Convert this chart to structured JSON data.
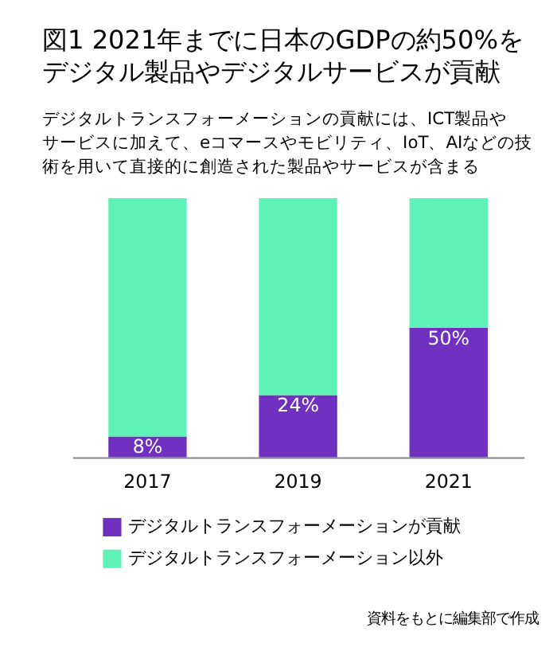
{
  "chart_data": {
    "type": "bar",
    "title": [
      "図1 2021年までに日本のGDPの約50%を",
      "デジタル製品やデジタルサービスが貢献"
    ],
    "subtitle": [
      "デジタルトランスフォーメーションの貢献には、ICT製品や",
      "サービスに加えて、eコマースやモビリティ、IoT、AIなどの技",
      "術を用いて直接的に創造された製品やサービスが含まる"
    ],
    "categories": [
      "2017",
      "2019",
      "2021"
    ],
    "stacked": true,
    "series": [
      {
        "name": "デジタルトランスフォーメーションが貢献",
        "color": "#7030c0",
        "values": [
          8,
          24,
          50
        ],
        "value_labels": [
          "8%",
          "24%",
          "50%"
        ]
      },
      {
        "name": "デジタルトランスフォーメーション以外",
        "color": "#5ef2b8",
        "values": [
          92,
          76,
          50
        ]
      }
    ],
    "legend": "bottom left",
    "grid": false,
    "annotations": [
      "資料をもとに編集部で作成"
    ]
  }
}
